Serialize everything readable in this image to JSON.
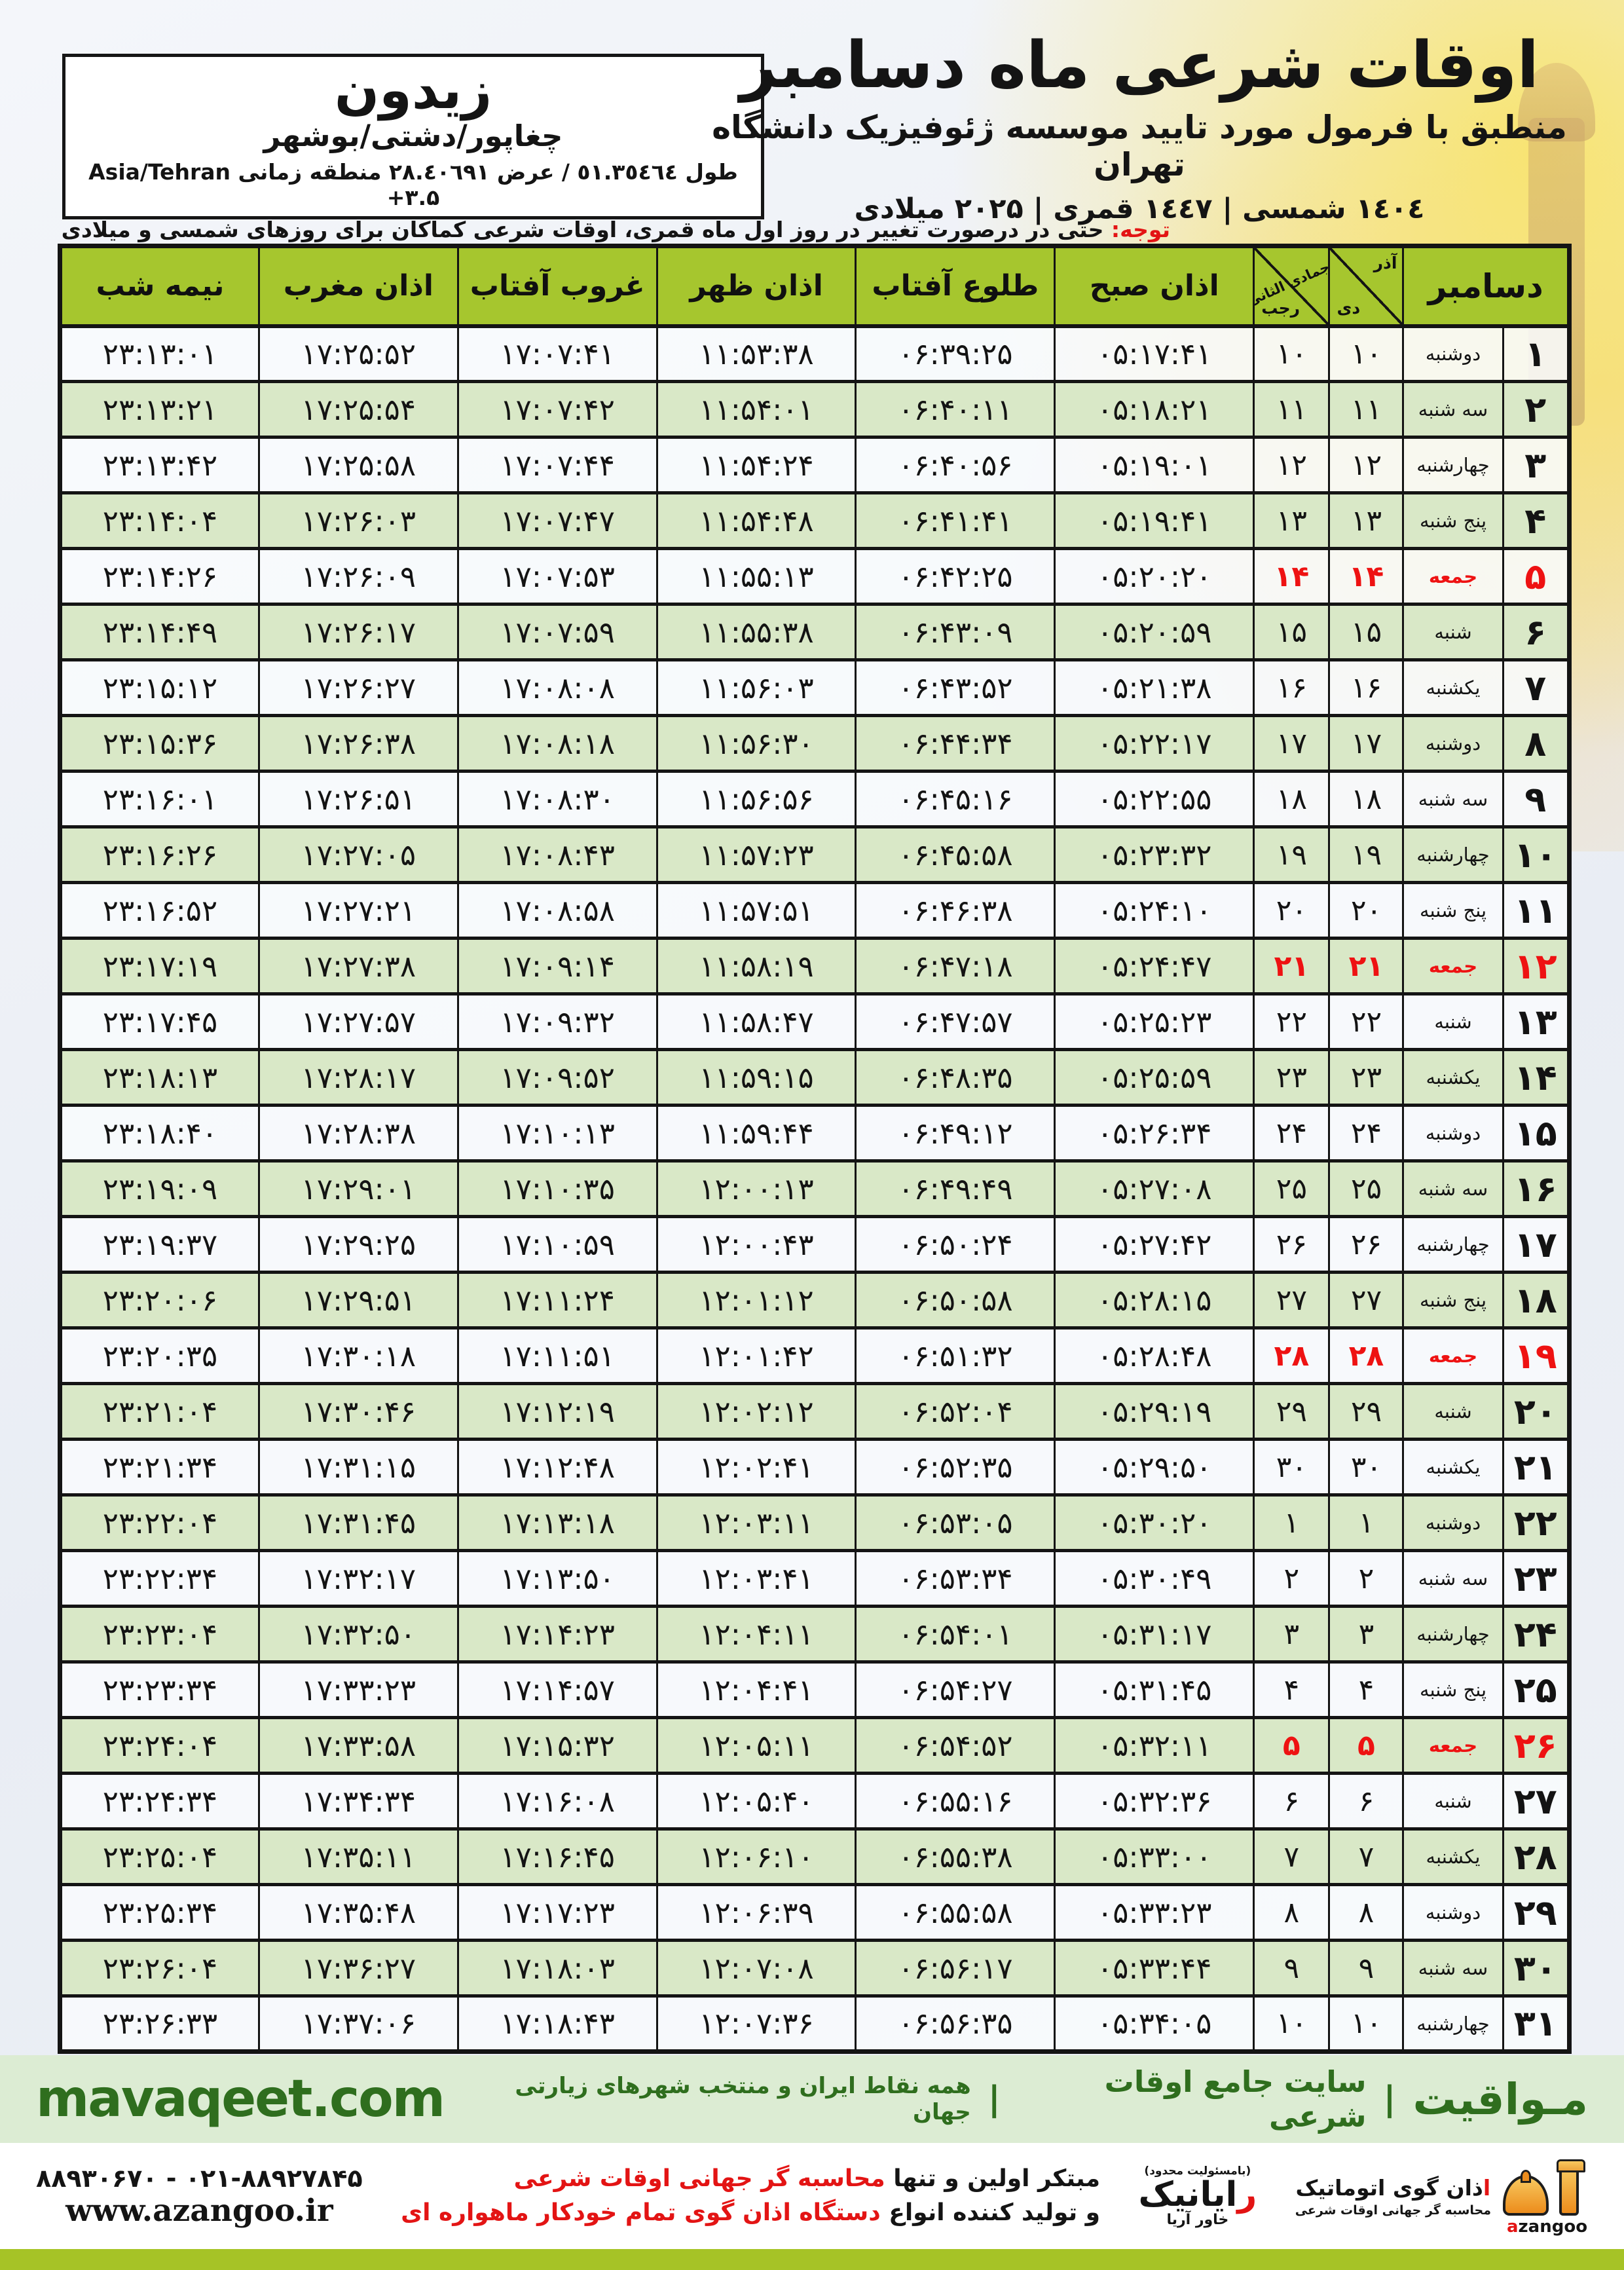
{
  "location_box": {
    "city": "زیدون",
    "region": "چغاپور/دشتی/بوشهر",
    "coords": "طول ٥١.٣٥٤٦٤ / عرض ٢٨.٤٠٦٩١ منطقه زمانی Asia/Tehran +۳.۵"
  },
  "title_block": {
    "title": "اوقات شرعی ماه دسامبر",
    "subtitle": "منطبق با فرمول مورد تایید موسسه ژئوفیزیک دانشگاه تهران",
    "calendars": "١٤٠٤ شمسی | ١٤٤٧ قمری | ۲۰۲۵ میلادی"
  },
  "notice": {
    "label": "توجه:",
    "text": " حتی در درصورت تغییر در روز اول ماه قمری، اوقات شرعی کماکان برای روزهای شمسی و میلادی معتبر است."
  },
  "table": {
    "columns": {
      "december": "دسامبر",
      "solar_month_top": "آذر",
      "solar_month_bottom": "دی",
      "hijri_month_top": "جمادی الثانی",
      "hijri_month_bottom": "رجب",
      "fajr": "اذان صبح",
      "sunrise": "طلوع آفتاب",
      "dhuhr": "اذان ظهر",
      "sunset": "غروب آفتاب",
      "maghrib": "اذان مغرب",
      "midnight": "نیمه شب"
    },
    "rows": [
      {
        "day": "1",
        "weekday": "دوشنبه",
        "dey": "10",
        "rajab": "10",
        "fajr": "05:17:41",
        "sunrise": "06:39:25",
        "dhuhr": "11:53:38",
        "sunset": "17:07:41",
        "maghrib": "17:25:52",
        "midnight": "23:13:01"
      },
      {
        "day": "2",
        "weekday": "سه شنبه",
        "dey": "11",
        "rajab": "11",
        "fajr": "05:18:21",
        "sunrise": "06:40:11",
        "dhuhr": "11:54:01",
        "sunset": "17:07:42",
        "maghrib": "17:25:54",
        "midnight": "23:13:21"
      },
      {
        "day": "3",
        "weekday": "چهارشنبه",
        "dey": "12",
        "rajab": "12",
        "fajr": "05:19:01",
        "sunrise": "06:40:56",
        "dhuhr": "11:54:24",
        "sunset": "17:07:44",
        "maghrib": "17:25:58",
        "midnight": "23:13:42"
      },
      {
        "day": "4",
        "weekday": "پنج شنبه",
        "dey": "13",
        "rajab": "13",
        "fajr": "05:19:41",
        "sunrise": "06:41:41",
        "dhuhr": "11:54:48",
        "sunset": "17:07:47",
        "maghrib": "17:26:03",
        "midnight": "23:14:04"
      },
      {
        "day": "5",
        "weekday": "جمعه",
        "dey": "14",
        "rajab": "14",
        "fajr": "05:20:20",
        "sunrise": "06:42:25",
        "dhuhr": "11:55:13",
        "sunset": "17:07:53",
        "maghrib": "17:26:09",
        "midnight": "23:14:26"
      },
      {
        "day": "6",
        "weekday": "شنبه",
        "dey": "15",
        "rajab": "15",
        "fajr": "05:20:59",
        "sunrise": "06:43:09",
        "dhuhr": "11:55:38",
        "sunset": "17:07:59",
        "maghrib": "17:26:17",
        "midnight": "23:14:49"
      },
      {
        "day": "7",
        "weekday": "یکشنبه",
        "dey": "16",
        "rajab": "16",
        "fajr": "05:21:38",
        "sunrise": "06:43:52",
        "dhuhr": "11:56:03",
        "sunset": "17:08:08",
        "maghrib": "17:26:27",
        "midnight": "23:15:12"
      },
      {
        "day": "8",
        "weekday": "دوشنبه",
        "dey": "17",
        "rajab": "17",
        "fajr": "05:22:17",
        "sunrise": "06:44:34",
        "dhuhr": "11:56:30",
        "sunset": "17:08:18",
        "maghrib": "17:26:38",
        "midnight": "23:15:36"
      },
      {
        "day": "9",
        "weekday": "سه شنبه",
        "dey": "18",
        "rajab": "18",
        "fajr": "05:22:55",
        "sunrise": "06:45:16",
        "dhuhr": "11:56:56",
        "sunset": "17:08:30",
        "maghrib": "17:26:51",
        "midnight": "23:16:01"
      },
      {
        "day": "10",
        "weekday": "چهارشنبه",
        "dey": "19",
        "rajab": "19",
        "fajr": "05:23:32",
        "sunrise": "06:45:58",
        "dhuhr": "11:57:23",
        "sunset": "17:08:43",
        "maghrib": "17:27:05",
        "midnight": "23:16:26"
      },
      {
        "day": "11",
        "weekday": "پنج شنبه",
        "dey": "20",
        "rajab": "20",
        "fajr": "05:24:10",
        "sunrise": "06:46:38",
        "dhuhr": "11:57:51",
        "sunset": "17:08:58",
        "maghrib": "17:27:21",
        "midnight": "23:16:52"
      },
      {
        "day": "12",
        "weekday": "جمعه",
        "dey": "21",
        "rajab": "21",
        "fajr": "05:24:47",
        "sunrise": "06:47:18",
        "dhuhr": "11:58:19",
        "sunset": "17:09:14",
        "maghrib": "17:27:38",
        "midnight": "23:17:19"
      },
      {
        "day": "13",
        "weekday": "شنبه",
        "dey": "22",
        "rajab": "22",
        "fajr": "05:25:23",
        "sunrise": "06:47:57",
        "dhuhr": "11:58:47",
        "sunset": "17:09:32",
        "maghrib": "17:27:57",
        "midnight": "23:17:45"
      },
      {
        "day": "14",
        "weekday": "یکشنبه",
        "dey": "23",
        "rajab": "23",
        "fajr": "05:25:59",
        "sunrise": "06:48:35",
        "dhuhr": "11:59:15",
        "sunset": "17:09:52",
        "maghrib": "17:28:17",
        "midnight": "23:18:13"
      },
      {
        "day": "15",
        "weekday": "دوشنبه",
        "dey": "24",
        "rajab": "24",
        "fajr": "05:26:34",
        "sunrise": "06:49:12",
        "dhuhr": "11:59:44",
        "sunset": "17:10:13",
        "maghrib": "17:28:38",
        "midnight": "23:18:40"
      },
      {
        "day": "16",
        "weekday": "سه شنبه",
        "dey": "25",
        "rajab": "25",
        "fajr": "05:27:08",
        "sunrise": "06:49:49",
        "dhuhr": "12:00:13",
        "sunset": "17:10:35",
        "maghrib": "17:29:01",
        "midnight": "23:19:09"
      },
      {
        "day": "17",
        "weekday": "چهارشنبه",
        "dey": "26",
        "rajab": "26",
        "fajr": "05:27:42",
        "sunrise": "06:50:24",
        "dhuhr": "12:00:43",
        "sunset": "17:10:59",
        "maghrib": "17:29:25",
        "midnight": "23:19:37"
      },
      {
        "day": "18",
        "weekday": "پنج شنبه",
        "dey": "27",
        "rajab": "27",
        "fajr": "05:28:15",
        "sunrise": "06:50:58",
        "dhuhr": "12:01:12",
        "sunset": "17:11:24",
        "maghrib": "17:29:51",
        "midnight": "23:20:06"
      },
      {
        "day": "19",
        "weekday": "جمعه",
        "dey": "28",
        "rajab": "28",
        "fajr": "05:28:48",
        "sunrise": "06:51:32",
        "dhuhr": "12:01:42",
        "sunset": "17:11:51",
        "maghrib": "17:30:18",
        "midnight": "23:20:35"
      },
      {
        "day": "20",
        "weekday": "شنبه",
        "dey": "29",
        "rajab": "29",
        "fajr": "05:29:19",
        "sunrise": "06:52:04",
        "dhuhr": "12:02:12",
        "sunset": "17:12:19",
        "maghrib": "17:30:46",
        "midnight": "23:21:04"
      },
      {
        "day": "21",
        "weekday": "یکشنبه",
        "dey": "30",
        "rajab": "30",
        "fajr": "05:29:50",
        "sunrise": "06:52:35",
        "dhuhr": "12:02:41",
        "sunset": "17:12:48",
        "maghrib": "17:31:15",
        "midnight": "23:21:34"
      },
      {
        "day": "22",
        "weekday": "دوشنبه",
        "dey": "1",
        "rajab": "1",
        "fajr": "05:30:20",
        "sunrise": "06:53:05",
        "dhuhr": "12:03:11",
        "sunset": "17:13:18",
        "maghrib": "17:31:45",
        "midnight": "23:22:04"
      },
      {
        "day": "23",
        "weekday": "سه شنبه",
        "dey": "2",
        "rajab": "2",
        "fajr": "05:30:49",
        "sunrise": "06:53:34",
        "dhuhr": "12:03:41",
        "sunset": "17:13:50",
        "maghrib": "17:32:17",
        "midnight": "23:22:34"
      },
      {
        "day": "24",
        "weekday": "چهارشنبه",
        "dey": "3",
        "rajab": "3",
        "fajr": "05:31:17",
        "sunrise": "06:54:01",
        "dhuhr": "12:04:11",
        "sunset": "17:14:23",
        "maghrib": "17:32:50",
        "midnight": "23:23:04"
      },
      {
        "day": "25",
        "weekday": "پنج شنبه",
        "dey": "4",
        "rajab": "4",
        "fajr": "05:31:45",
        "sunrise": "06:54:27",
        "dhuhr": "12:04:41",
        "sunset": "17:14:57",
        "maghrib": "17:33:23",
        "midnight": "23:23:34"
      },
      {
        "day": "26",
        "weekday": "جمعه",
        "dey": "5",
        "rajab": "5",
        "fajr": "05:32:11",
        "sunrise": "06:54:52",
        "dhuhr": "12:05:11",
        "sunset": "17:15:32",
        "maghrib": "17:33:58",
        "midnight": "23:24:04"
      },
      {
        "day": "27",
        "weekday": "شنبه",
        "dey": "6",
        "rajab": "6",
        "fajr": "05:32:36",
        "sunrise": "06:55:16",
        "dhuhr": "12:05:40",
        "sunset": "17:16:08",
        "maghrib": "17:34:34",
        "midnight": "23:24:34"
      },
      {
        "day": "28",
        "weekday": "یکشنبه",
        "dey": "7",
        "rajab": "7",
        "fajr": "05:33:00",
        "sunrise": "06:55:38",
        "dhuhr": "12:06:10",
        "sunset": "17:16:45",
        "maghrib": "17:35:11",
        "midnight": "23:25:04"
      },
      {
        "day": "29",
        "weekday": "دوشنبه",
        "dey": "8",
        "rajab": "8",
        "fajr": "05:33:23",
        "sunrise": "06:55:58",
        "dhuhr": "12:06:39",
        "sunset": "17:17:23",
        "maghrib": "17:35:48",
        "midnight": "23:25:34"
      },
      {
        "day": "30",
        "weekday": "سه شنبه",
        "dey": "9",
        "rajab": "9",
        "fajr": "05:33:44",
        "sunrise": "06:56:17",
        "dhuhr": "12:07:08",
        "sunset": "17:18:03",
        "maghrib": "17:36:27",
        "midnight": "23:26:04"
      },
      {
        "day": "31",
        "weekday": "چهارشنبه",
        "dey": "10",
        "rajab": "10",
        "fajr": "05:34:05",
        "sunrise": "06:56:35",
        "dhuhr": "12:07:36",
        "sunset": "17:18:43",
        "maghrib": "17:37:06",
        "midnight": "23:26:33"
      }
    ]
  },
  "banner": {
    "brand": "مـواقیت",
    "divider": "|",
    "tagline": "سایت جامع اوقات شرعی",
    "coverage": "همه نقاط ایران و منتخب شهرهای زیارتی جهان",
    "url": "mavaqeet.com"
  },
  "footer": {
    "azangoo_title_first": "ا",
    "azangoo_title_rest": "ذان گوی اتوماتیک",
    "azangoo_subtitle": "محاسبه گر جهانی اوقات شرعی",
    "azangoo_brand_first": "a",
    "azangoo_brand_rest": "zangoo",
    "rayanik_note": "(بامسئولیت محدود)",
    "rayanik_first": "ر",
    "rayanik_rest": "ایانیک",
    "rayanik_sub": "خاور آریا",
    "desc_line1_black": "مبتکر اولین و تنها ",
    "desc_line1_red": "محاسبه گر جهانی اوقات شرعی",
    "desc_line2_black": "و تولید کننده انواع ",
    "desc_line2_red": "دستگاه اذان گوی تمام خودکار ماهواره ای",
    "phones": "۰۲۱-۸۸۹۲۷۸۴۵ - ۸۸۹۳۰۶۷۰",
    "website": "www.azangoo.ir"
  },
  "colors": {
    "header_green": "#a6c62e",
    "row_green": "#d9e8c7",
    "friday_red": "#ee1212",
    "notice_red": "#e31414",
    "banner_text_green": "#2f6e1e",
    "banner_bg": "#dcecd3",
    "bottom_bar_green": "#a6c326",
    "azangoo_orange": "#ec8c1c"
  }
}
